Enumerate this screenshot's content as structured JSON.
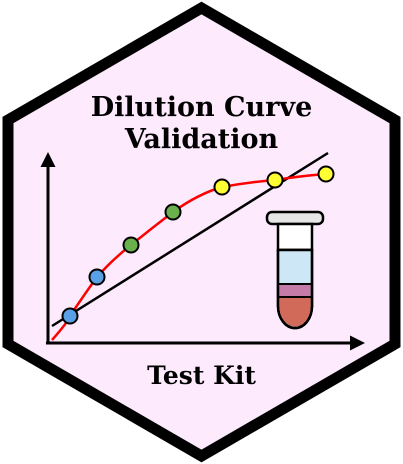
{
  "badge": {
    "title_line1": "Dilution Curve",
    "title_line2": "Validation",
    "footer": "Test Kit"
  },
  "colors": {
    "hex_fill": "#fdeafd",
    "hex_border": "#000000",
    "curve": "#ff0000",
    "trend_line": "#000000",
    "axis": "#000000",
    "marker_low": "#5aa0e6",
    "marker_mid": "#6ab04c",
    "marker_high": "#ffff33",
    "tube_cap": "#e6e6e6",
    "tube_liquid": "#cde7f7",
    "tube_band": "#c47ba8",
    "tube_sediment": "#d26a5a"
  },
  "icons": {
    "chart": "line-chart-icon",
    "tube": "test-tube-icon"
  }
}
